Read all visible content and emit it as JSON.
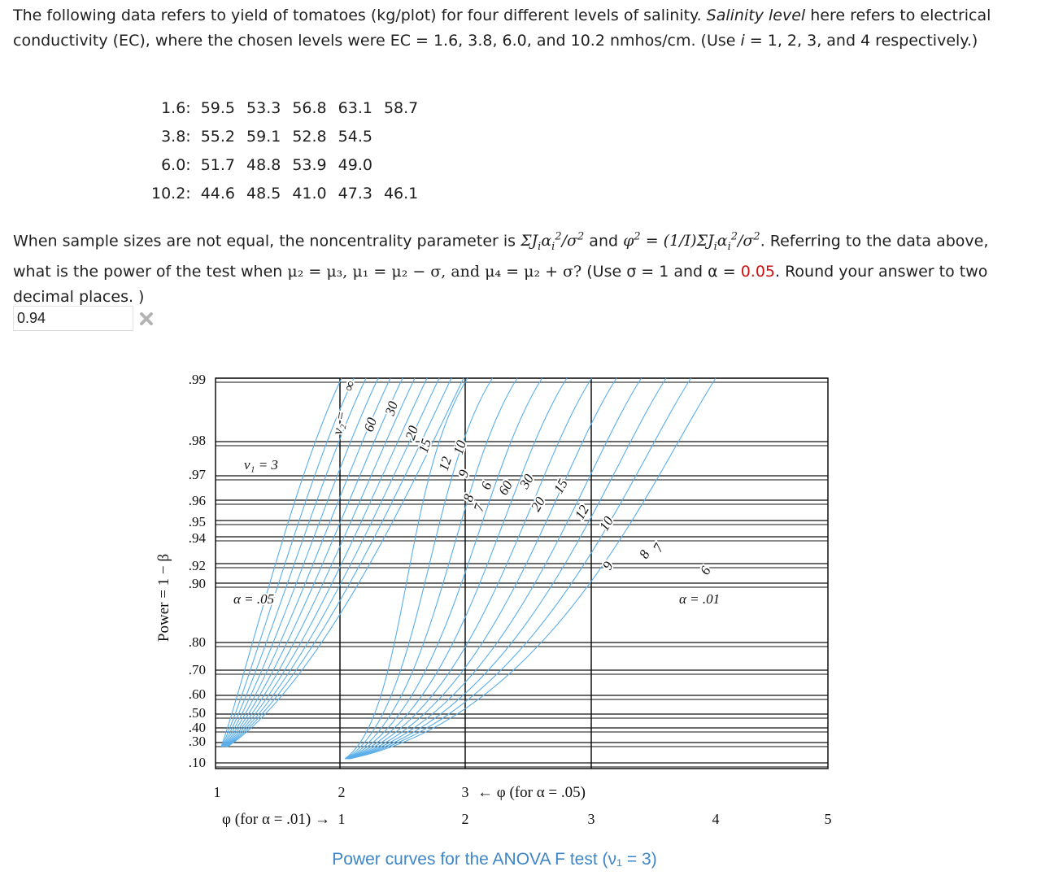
{
  "question": {
    "intro_part1": "The following data refers to yield of tomatoes (kg/plot) for four different levels of salinity. ",
    "intro_italic": "Salinity level",
    "intro_part2": " here refers to electrical conductivity (EC), where the chosen levels were EC = 1.6, 3.8, 6.0, and 10.2 nmhos/cm. (Use ",
    "intro_i": "i",
    "intro_part3": " = 1, 2, 3, and 4 respectively.)",
    "table": [
      {
        "level": "1.6:",
        "values": [
          "59.5",
          "53.3",
          "56.8",
          "63.1",
          "58.7"
        ]
      },
      {
        "level": "3.8:",
        "values": [
          "55.2",
          "59.1",
          "52.8",
          "54.5"
        ]
      },
      {
        "level": "6.0:",
        "values": [
          "51.7",
          "48.8",
          "53.9",
          "49.0"
        ]
      },
      {
        "level": "10.2:",
        "values": [
          "44.6",
          "48.5",
          "41.0",
          "47.3",
          "46.1"
        ]
      }
    ],
    "p2_a": "When sample sizes are not equal, the noncentrality parameter is ",
    "p2_formula1": "ΣJ",
    "p2_b": " and ",
    "p2_formula2": "φ",
    "p2_c": " = (1/I)ΣJ",
    "p2_d": ". Referring to the data above, what is the power of the test when ",
    "p2_cond": "μ₂ = μ₃, μ₁ = μ₂ − σ, and μ₄ = μ₂ + σ?",
    "p2_e": " (Use σ = 1 and α = ",
    "p2_alpha": "0.05",
    "p2_f": ". Round your answer to two decimal places. )"
  },
  "answer": {
    "value": "0.94",
    "status_icon": "cross-icon"
  },
  "chart_data": {
    "type": "line",
    "title": "Power curves for the ANOVA F test (ν₁ = 3)",
    "ylabel": "Power = 1 − β",
    "y_ticks": [
      ".99",
      ".98",
      ".97",
      ".96",
      ".95",
      ".94",
      ".92",
      ".90",
      ".80",
      ".70",
      ".60",
      ".50",
      ".40",
      ".30",
      ".10"
    ],
    "x_axis_alpha_05": {
      "ticks": [
        "1",
        "2",
        "3"
      ],
      "label": "φ (for α = .05)"
    },
    "x_axis_alpha_01": {
      "ticks": [
        "1",
        "2",
        "3",
        "4",
        "5"
      ],
      "label": "φ (for α = .01)"
    },
    "nu1_label": "ν₁ = 3",
    "nu2_label": "ν₂ =",
    "nu2_values": [
      "∞",
      "60",
      "30",
      "20",
      "15",
      "12",
      "10",
      "9",
      "8",
      "7",
      "6"
    ],
    "alpha_labels": [
      "α = .05",
      "α = .01"
    ],
    "line_color": "#5aaeea"
  }
}
